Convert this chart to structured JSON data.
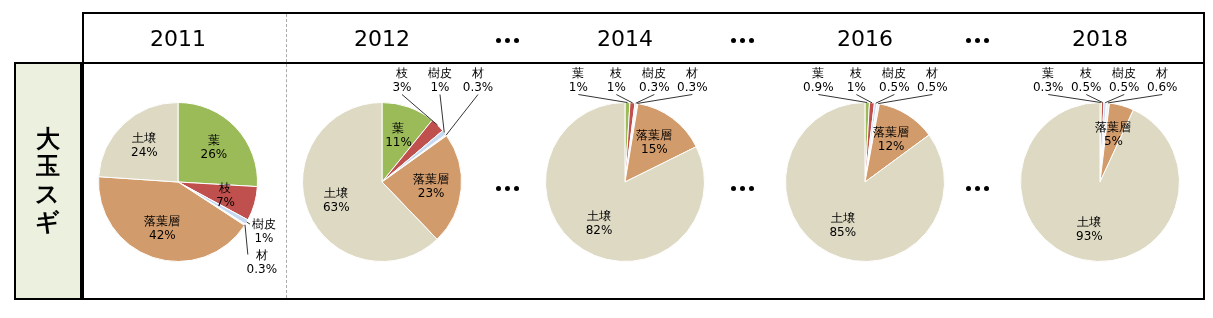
{
  "chart_data": [
    {
      "type": "pie",
      "title": "2011",
      "ylabel": "大玉スギ",
      "categories": [
        "葉",
        "枝",
        "樹皮",
        "材",
        "落葉層",
        "土壌"
      ],
      "values": [
        26,
        7,
        1,
        0.3,
        42,
        24
      ],
      "value_labels": [
        "26%",
        "7%",
        "1%",
        "0.3%",
        "42%",
        "24%"
      ],
      "colors": [
        "#9bbb59",
        "#c0504d",
        "#c6d9f1",
        "#f2f2f2",
        "#d29b6c",
        "#ddd9c3"
      ]
    },
    {
      "type": "pie",
      "title": "2012",
      "categories": [
        "葉",
        "枝",
        "樹皮",
        "材",
        "落葉層",
        "土壌"
      ],
      "values": [
        11,
        3,
        1,
        0.3,
        23,
        63
      ],
      "value_labels": [
        "11%",
        "3%",
        "1%",
        "0.3%",
        "23%",
        "63%"
      ],
      "colors": [
        "#9bbb59",
        "#c0504d",
        "#c6d9f1",
        "#f2f2f2",
        "#d29b6c",
        "#ddd9c3"
      ]
    },
    {
      "type": "pie",
      "title": "2014",
      "categories": [
        "葉",
        "枝",
        "樹皮",
        "材",
        "落葉層",
        "土壌"
      ],
      "values": [
        1,
        1,
        0.3,
        0.3,
        15,
        82
      ],
      "value_labels": [
        "1%",
        "1%",
        "0.3%",
        "0.3%",
        "15%",
        "82%"
      ],
      "colors": [
        "#9bbb59",
        "#c0504d",
        "#c6d9f1",
        "#f2f2f2",
        "#d29b6c",
        "#ddd9c3"
      ]
    },
    {
      "type": "pie",
      "title": "2016",
      "categories": [
        "葉",
        "枝",
        "樹皮",
        "材",
        "落葉層",
        "土壌"
      ],
      "values": [
        0.9,
        1,
        0.5,
        0.5,
        12,
        85
      ],
      "value_labels": [
        "0.9%",
        "1%",
        "0.5%",
        "0.5%",
        "12%",
        "85%"
      ],
      "colors": [
        "#9bbb59",
        "#c0504d",
        "#c6d9f1",
        "#f2f2f2",
        "#d29b6c",
        "#ddd9c3"
      ]
    },
    {
      "type": "pie",
      "title": "2018",
      "categories": [
        "葉",
        "枝",
        "樹皮",
        "材",
        "落葉層",
        "土壌"
      ],
      "values": [
        0.3,
        0.5,
        0.5,
        0.6,
        5,
        93
      ],
      "value_labels": [
        "0.3%",
        "0.5%",
        "0.5%",
        "0.6%",
        "5%",
        "93%"
      ],
      "colors": [
        "#9bbb59",
        "#c0504d",
        "#c6d9f1",
        "#f2f2f2",
        "#d29b6c",
        "#ddd9c3"
      ]
    }
  ]
}
